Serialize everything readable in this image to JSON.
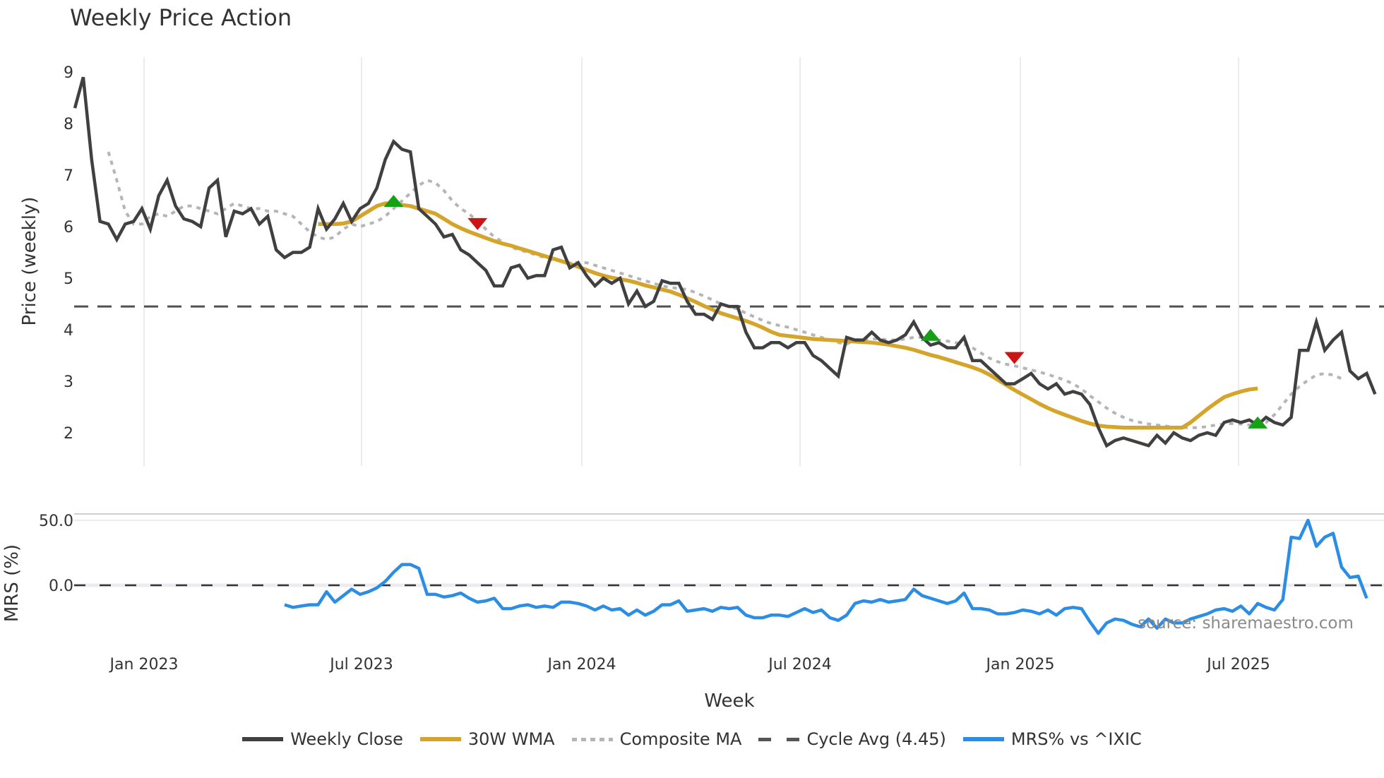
{
  "title": "Weekly Price Action",
  "source_note": "source: sharemaestro.com",
  "legend": [
    {
      "key": "close",
      "label": "Weekly Close",
      "color": "#404040",
      "style": "solid"
    },
    {
      "key": "wma",
      "label": "30W WMA",
      "color": "#d4a52a",
      "style": "solid"
    },
    {
      "key": "composite",
      "label": "Composite MA",
      "color": "#b5b5b5",
      "style": "dotted"
    },
    {
      "key": "cycle",
      "label": "Cycle Avg (4.45)",
      "color": "#555555",
      "style": "dashed"
    },
    {
      "key": "mrs",
      "label": "MRS% vs ^IXIC",
      "color": "#2b8de3",
      "style": "solid"
    }
  ],
  "chart_data": [
    {
      "type": "line",
      "title": "Weekly Price Action",
      "xlabel": "Week",
      "ylabel": "Price (weekly)",
      "ylim": [
        1.35,
        9.3
      ],
      "yticks": [
        2,
        3,
        4,
        5,
        6,
        7,
        8,
        9
      ],
      "xticks": [
        "Jan 2023",
        "Jul 2023",
        "Jan 2024",
        "Jul 2024",
        "Jan 2025",
        "Jul 2025"
      ],
      "x_start": "Nov 2022",
      "x_step": "1 week",
      "grid": {
        "x": true,
        "y": false
      },
      "reference_lines": [
        {
          "name": "Cycle Avg",
          "value": 4.45,
          "style": "dashed",
          "color": "#555555"
        }
      ],
      "series": [
        {
          "name": "Weekly Close",
          "color": "#404040",
          "start_index": 0,
          "values": [
            8.3,
            8.9,
            7.3,
            6.1,
            6.05,
            5.75,
            6.05,
            6.1,
            6.35,
            5.95,
            6.6,
            6.9,
            6.4,
            6.15,
            6.1,
            6.0,
            6.75,
            6.9,
            5.8,
            6.3,
            6.25,
            6.35,
            6.05,
            6.2,
            5.55,
            5.4,
            5.5,
            5.5,
            5.6,
            6.35,
            5.95,
            6.15,
            6.45,
            6.1,
            6.35,
            6.45,
            6.75,
            7.3,
            7.65,
            7.5,
            7.45,
            6.35,
            6.2,
            6.05,
            5.8,
            5.85,
            5.55,
            5.45,
            5.3,
            5.15,
            4.85,
            4.85,
            5.2,
            5.25,
            5.0,
            5.05,
            5.05,
            5.55,
            5.6,
            5.2,
            5.3,
            5.05,
            4.85,
            5.0,
            4.9,
            5.0,
            4.5,
            4.75,
            4.45,
            4.55,
            4.95,
            4.9,
            4.9,
            4.55,
            4.3,
            4.3,
            4.2,
            4.5,
            4.45,
            4.45,
            3.95,
            3.65,
            3.65,
            3.75,
            3.75,
            3.65,
            3.75,
            3.75,
            3.5,
            3.4,
            3.25,
            3.1,
            3.85,
            3.8,
            3.8,
            3.95,
            3.8,
            3.75,
            3.8,
            3.9,
            4.15,
            3.85,
            3.7,
            3.75,
            3.65,
            3.65,
            3.85,
            3.4,
            3.4,
            3.25,
            3.1,
            2.95,
            2.95,
            3.05,
            3.15,
            2.95,
            2.85,
            2.95,
            2.75,
            2.8,
            2.75,
            2.55,
            2.1,
            1.75,
            1.85,
            1.9,
            1.85,
            1.8,
            1.75,
            1.95,
            1.8,
            2.0,
            1.9,
            1.85,
            1.95,
            2.0,
            1.95,
            2.2,
            2.25,
            2.2,
            2.25,
            2.15,
            2.3,
            2.2,
            2.15,
            2.3,
            3.6,
            3.6,
            4.15,
            3.6,
            3.8,
            3.95,
            3.2,
            3.05,
            3.15,
            2.75
          ]
        },
        {
          "name": "30W WMA",
          "color": "#d4a52a",
          "start_index": 29,
          "values": [
            6.05,
            6.05,
            6.05,
            6.06,
            6.1,
            6.2,
            6.3,
            6.4,
            6.45,
            6.45,
            6.42,
            6.4,
            6.35,
            6.3,
            6.25,
            6.15,
            6.05,
            5.97,
            5.9,
            5.84,
            5.78,
            5.72,
            5.67,
            5.63,
            5.58,
            5.53,
            5.48,
            5.43,
            5.38,
            5.33,
            5.28,
            5.22,
            5.16,
            5.1,
            5.05,
            5.01,
            4.98,
            4.95,
            4.91,
            4.86,
            4.82,
            4.78,
            4.74,
            4.68,
            4.61,
            4.54,
            4.46,
            4.39,
            4.32,
            4.27,
            4.22,
            4.17,
            4.11,
            4.04,
            3.96,
            3.9,
            3.88,
            3.86,
            3.84,
            3.82,
            3.81,
            3.8,
            3.79,
            3.78,
            3.77,
            3.76,
            3.75,
            3.73,
            3.71,
            3.68,
            3.65,
            3.61,
            3.56,
            3.51,
            3.47,
            3.42,
            3.37,
            3.32,
            3.27,
            3.21,
            3.13,
            3.03,
            2.93,
            2.83,
            2.74,
            2.65,
            2.56,
            2.48,
            2.41,
            2.35,
            2.29,
            2.23,
            2.18,
            2.14,
            2.12,
            2.11,
            2.1,
            2.1,
            2.1,
            2.1,
            2.1,
            2.1,
            2.1,
            2.1,
            2.2,
            2.33,
            2.46,
            2.58,
            2.69,
            2.75,
            2.8,
            2.84,
            2.86
          ]
        },
        {
          "name": "Composite MA",
          "color": "#b5b5b5",
          "start_index": 4,
          "values": [
            7.45,
            6.9,
            6.3,
            6.05,
            6.05,
            6.2,
            6.25,
            6.2,
            6.3,
            6.4,
            6.4,
            6.35,
            6.3,
            6.25,
            6.35,
            6.45,
            6.4,
            6.35,
            6.35,
            6.3,
            6.3,
            6.25,
            6.2,
            6.05,
            5.9,
            5.8,
            5.75,
            5.8,
            5.95,
            6.05,
            6.0,
            6.05,
            6.1,
            6.2,
            6.35,
            6.5,
            6.65,
            6.8,
            6.9,
            6.85,
            6.7,
            6.5,
            6.35,
            6.25,
            6.1,
            5.95,
            5.8,
            5.7,
            5.6,
            5.55,
            5.5,
            5.45,
            5.4,
            5.35,
            5.35,
            5.3,
            5.3,
            5.3,
            5.25,
            5.2,
            5.15,
            5.1,
            5.05,
            5.0,
            4.95,
            4.9,
            4.85,
            4.82,
            4.8,
            4.78,
            4.72,
            4.65,
            4.58,
            4.5,
            4.45,
            4.4,
            4.32,
            4.25,
            4.18,
            4.12,
            4.08,
            4.05,
            4.0,
            3.95,
            3.9,
            3.85,
            3.8,
            3.75,
            3.72,
            3.8,
            3.82,
            3.82,
            3.82,
            3.8,
            3.8,
            3.82,
            3.85,
            3.85,
            3.82,
            3.8,
            3.78,
            3.75,
            3.72,
            3.65,
            3.55,
            3.45,
            3.38,
            3.33,
            3.3,
            3.26,
            3.22,
            3.18,
            3.13,
            3.08,
            3.02,
            2.95,
            2.85,
            2.72,
            2.6,
            2.48,
            2.38,
            2.3,
            2.24,
            2.2,
            2.17,
            2.15,
            2.13,
            2.11,
            2.1,
            2.1,
            2.1,
            2.12,
            2.15,
            2.17,
            2.18,
            2.17,
            2.15,
            2.16,
            2.2,
            2.35,
            2.55,
            2.75,
            2.9,
            3.02,
            3.12,
            3.15,
            3.12,
            3.05
          ]
        }
      ],
      "signals": [
        {
          "type": "buy",
          "marker": "triangle-up",
          "color": "#16a016",
          "index": 38,
          "value": 6.5
        },
        {
          "type": "sell",
          "marker": "triangle-down",
          "color": "#cc1414",
          "index": 48,
          "value": 6.05
        },
        {
          "type": "buy",
          "marker": "triangle-up",
          "color": "#16a016",
          "index": 102,
          "value": 3.9
        },
        {
          "type": "sell",
          "marker": "triangle-down",
          "color": "#cc1414",
          "index": 112,
          "value": 3.45
        },
        {
          "type": "buy",
          "marker": "triangle-up",
          "color": "#16a016",
          "index": 141,
          "value": 2.2
        }
      ]
    },
    {
      "type": "line",
      "title": "",
      "xlabel": "Week",
      "ylabel": "MRS (%)",
      "ylim": [
        -50,
        55
      ],
      "yticks": [
        0.0,
        50.0
      ],
      "ytick_labels": [
        "0.0",
        "50.0"
      ],
      "reference_lines": [
        {
          "name": "zero",
          "value": 0,
          "style": "dashed",
          "color": "#333333"
        }
      ],
      "series": [
        {
          "name": "MRS% vs ^IXIC",
          "color": "#2b8de3",
          "start_index": 25,
          "values": [
            -15,
            -17,
            -16,
            -15,
            -15,
            -5,
            -13,
            -8,
            -3,
            -7,
            -5,
            -2,
            3,
            10,
            16,
            16,
            13,
            -7,
            -7,
            -9,
            -8,
            -6,
            -10,
            -13,
            -12,
            -10,
            -18,
            -18,
            -16,
            -15,
            -17,
            -16,
            -17,
            -13,
            -13,
            -14,
            -16,
            -19,
            -16,
            -19,
            -18,
            -23,
            -19,
            -23,
            -20,
            -15,
            -15,
            -12,
            -20,
            -19,
            -18,
            -20,
            -17,
            -18,
            -17,
            -23,
            -25,
            -25,
            -23,
            -23,
            -24,
            -21,
            -18,
            -21,
            -19,
            -25,
            -27,
            -23,
            -14,
            -12,
            -13,
            -11,
            -13,
            -12,
            -11,
            -3,
            -8,
            -10,
            -12,
            -14,
            -12,
            -6,
            -18,
            -18,
            -19,
            -22,
            -22,
            -21,
            -19,
            -20,
            -22,
            -19,
            -23,
            -18,
            -17,
            -18,
            -28,
            -37,
            -29,
            -26,
            -27,
            -30,
            -32,
            -26,
            -33,
            -26,
            -29,
            -29,
            -26,
            -24,
            -22,
            -19,
            -18,
            -20,
            -16,
            -22,
            -14,
            -17,
            -19,
            -11,
            37,
            36,
            50,
            30,
            37,
            40,
            14,
            6,
            7,
            -10
          ]
        }
      ]
    }
  ],
  "axes": {
    "price_ylabel": "Price (weekly)",
    "mrs_ylabel": "MRS (%)",
    "xlabel": "Week",
    "price_yticks": [
      "2",
      "3",
      "4",
      "5",
      "6",
      "7",
      "8",
      "9"
    ],
    "mrs_yticks": [
      "50.0",
      "0.0"
    ],
    "xticks": [
      "Jan 2023",
      "Jul 2023",
      "Jan 2024",
      "Jul 2024",
      "Jan 2025",
      "Jul 2025"
    ]
  }
}
